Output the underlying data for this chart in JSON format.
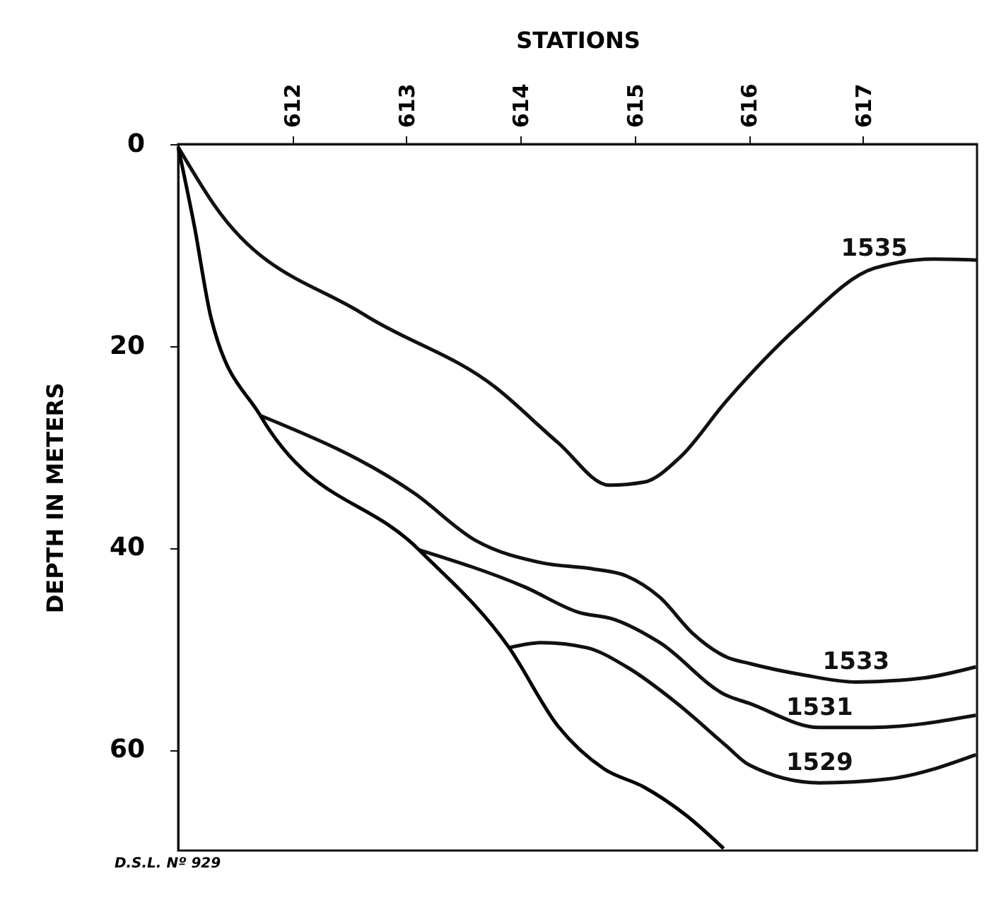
{
  "chart_data": {
    "type": "line",
    "xlabel": "STATIONS",
    "ylabel": "DEPTH IN METERS",
    "xlim": [
      611,
      618
    ],
    "xticks": [
      612,
      613,
      614,
      615,
      616,
      617
    ],
    "ylim": [
      70,
      0
    ],
    "yticks": [
      0,
      20,
      40,
      60
    ],
    "line_style": "solid",
    "annotations": [
      "D.S.L. Nº 929"
    ],
    "series": [
      {
        "name": "1535",
        "color": "#111111",
        "x": [
          611.0,
          611.32,
          612.63,
          613.78,
          614.33,
          614.78,
          615.08,
          615.4,
          615.8,
          616.44,
          617.1,
          617.62,
          618.0
        ],
        "values": [
          0.3,
          6.1,
          16.9,
          24.1,
          29.6,
          33.8,
          33.5,
          31.0,
          25.5,
          18.0,
          12.3,
          11.4,
          11.5
        ]
      },
      {
        "name": "1533",
        "color": "#111111",
        "x": [
          611.72,
          613.07,
          613.61,
          614.19,
          614.64,
          614.93,
          615.22,
          615.51,
          615.8,
          616.02,
          616.48,
          616.94,
          617.53,
          617.99
        ],
        "values": [
          26.9,
          34.6,
          39.3,
          41.5,
          42.1,
          42.8,
          44.9,
          48.5,
          50.8,
          51.5,
          52.6,
          53.3,
          52.9,
          51.8
        ]
      },
      {
        "name": "1531",
        "color": "#111111",
        "x": [
          613.11,
          614.04,
          614.51,
          614.82,
          615.22,
          615.8,
          616.0,
          616.62,
          617.08,
          617.99
        ],
        "values": [
          40.2,
          43.9,
          46.4,
          47.1,
          49.4,
          54.6,
          55.4,
          57.8,
          57.8,
          56.6
        ]
      },
      {
        "name": "1529",
        "color": "#111111",
        "x": [
          613.9,
          614.19,
          614.58,
          614.93,
          615.37,
          615.8,
          616.0,
          616.62,
          617.23,
          617.99
        ],
        "values": [
          49.9,
          49.4,
          49.9,
          51.8,
          55.4,
          59.6,
          61.5,
          63.3,
          62.9,
          60.5
        ]
      },
      {
        "color": "#000000",
        "x": [
          611.0,
          611.14,
          611.29,
          611.72,
          613.11,
          613.9,
          614.33,
          614.73,
          615.08,
          615.45,
          615.78
        ],
        "values": [
          0.3,
          8,
          17.3,
          26.9,
          40.2,
          49.9,
          57.7,
          61.9,
          63.7,
          66.5,
          69.8
        ]
      }
    ]
  }
}
